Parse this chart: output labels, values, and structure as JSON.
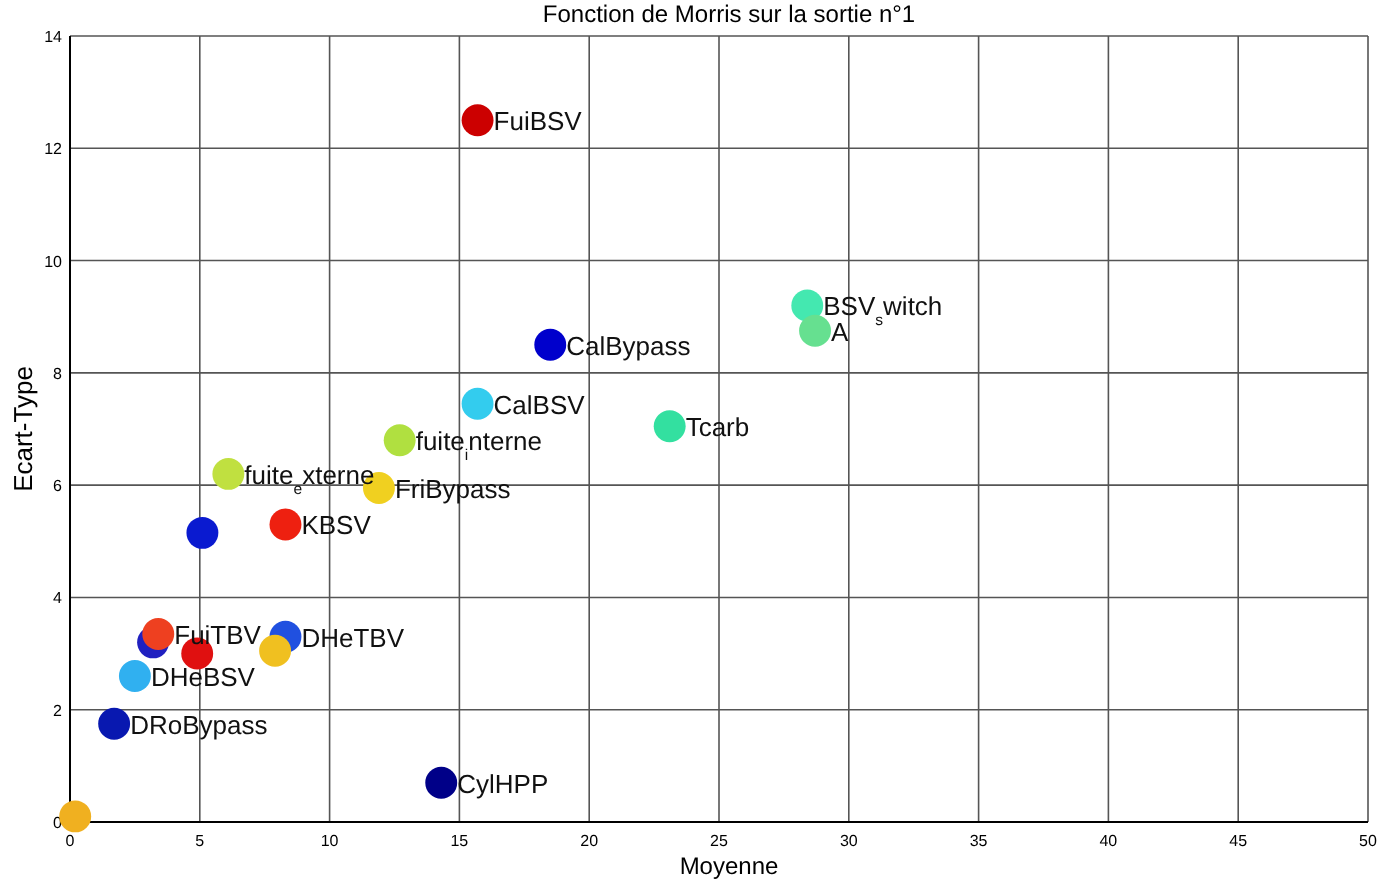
{
  "chart_data": {
    "type": "scatter",
    "title": "Fonction de Morris sur la sortie n°1",
    "xlabel": "Moyenne",
    "ylabel": "Ecart-Type",
    "xlim": [
      0,
      50
    ],
    "xticks": [
      0,
      5,
      10,
      15,
      20,
      25,
      30,
      35,
      40,
      45,
      50
    ],
    "ylim": [
      0,
      14
    ],
    "yticks": [
      0,
      2,
      4,
      6,
      8,
      10,
      12,
      14
    ],
    "grid": true,
    "marker": "circle",
    "x": [
      15.7,
      28.4,
      28.7,
      18.5,
      15.7,
      23.1,
      12.7,
      6.1,
      11.9,
      5.1,
      8.3,
      3.2,
      3.4,
      8.3,
      7.9,
      4.9,
      2.5,
      1.7,
      14.3,
      0.2
    ],
    "values": [
      12.5,
      9.2,
      8.75,
      8.5,
      7.45,
      7.05,
      6.8,
      6.2,
      5.95,
      5.15,
      5.3,
      3.2,
      3.35,
      3.3,
      3.05,
      3.0,
      2.6,
      1.75,
      0.7,
      0.1
    ],
    "colors": [
      "#cc0000",
      "#44e8b0",
      "#66e090",
      "#0000cc",
      "#33ccee",
      "#33e0a0",
      "#b0e040",
      "#c0e040",
      "#f0d020",
      "#0a1ad0",
      "#ee2010",
      "#2020c0",
      "#ee4020",
      "#2050e0",
      "#f0c020",
      "#e01010",
      "#30b0f0",
      "#0818b0",
      "#000088",
      "#f0b020"
    ],
    "annotations": [
      {
        "text": "FuiBSV",
        "x": 15.7,
        "y": 12.5
      },
      {
        "text": "BSV$_{s}$witch",
        "x": 28.4,
        "y": 9.2
      },
      {
        "text": "A",
        "x": 28.7,
        "y": 8.75
      },
      {
        "text": "CalBypass",
        "x": 18.5,
        "y": 8.5
      },
      {
        "text": "CalBSV",
        "x": 15.7,
        "y": 7.45
      },
      {
        "text": "Tcarb",
        "x": 23.1,
        "y": 7.05
      },
      {
        "text": "fuite$_{i}$nterne",
        "x": 12.7,
        "y": 6.8
      },
      {
        "text": "fuite$_{e}$xterne",
        "x": 6.1,
        "y": 6.2
      },
      {
        "text": "FriBypass",
        "x": 11.9,
        "y": 5.95
      },
      {
        "text": "KBSV",
        "x": 8.3,
        "y": 5.3
      },
      {
        "text": "FuiTBV",
        "x": 3.4,
        "y": 3.35
      },
      {
        "text": "DHeTBV",
        "x": 8.3,
        "y": 3.3
      },
      {
        "text": "DHeBSV",
        "x": 2.5,
        "y": 2.6
      },
      {
        "text": "DRoBypass",
        "x": 1.7,
        "y": 1.75
      },
      {
        "text": "CylHPP",
        "x": 14.3,
        "y": 0.7
      }
    ]
  }
}
